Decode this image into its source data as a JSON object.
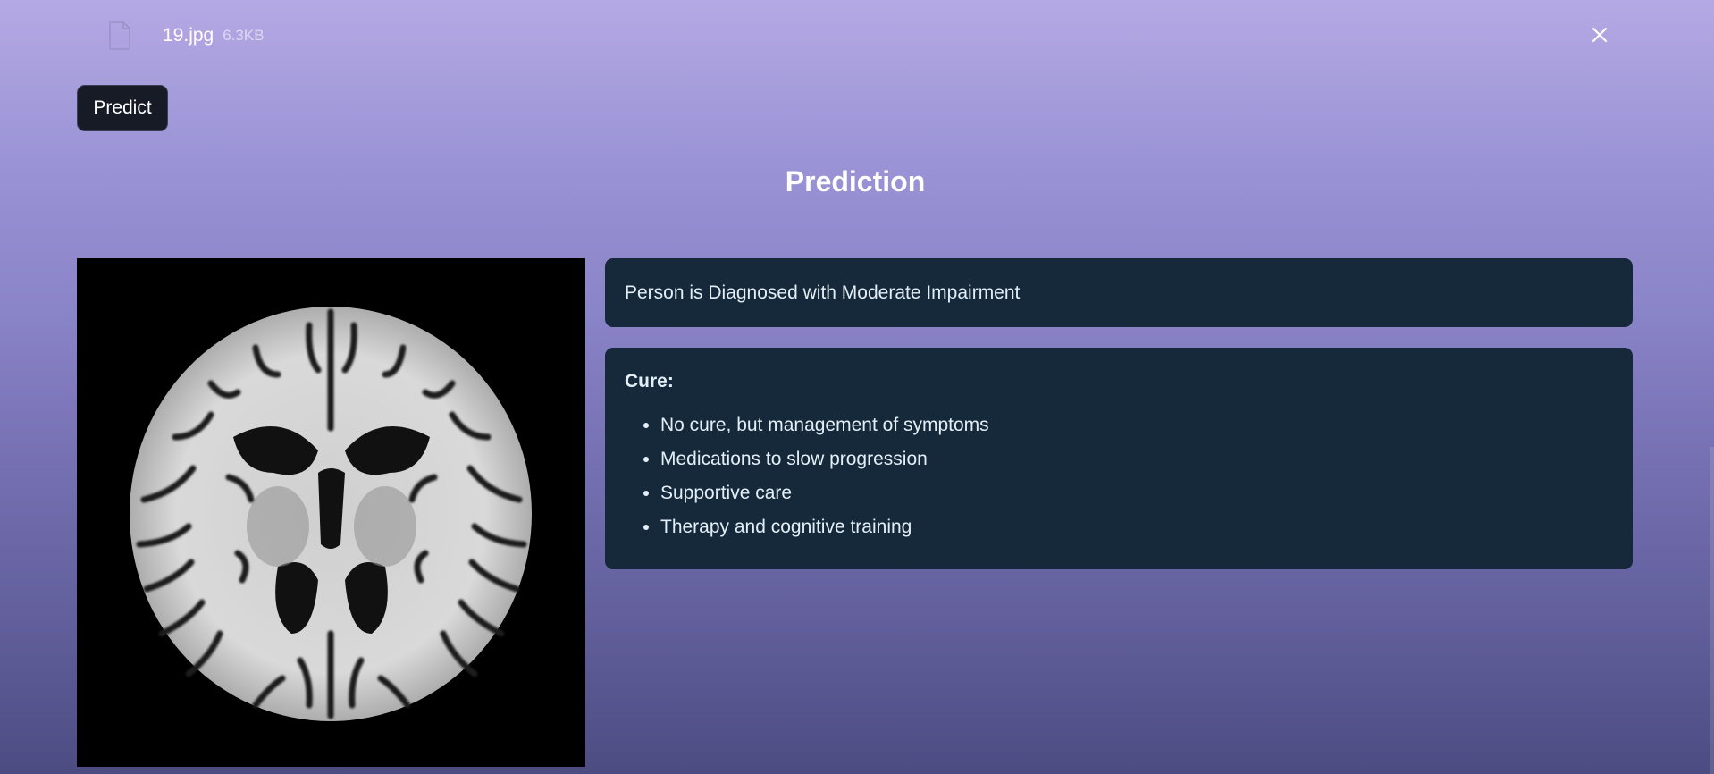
{
  "file": {
    "name": "19.jpg",
    "size": "6.3KB",
    "icon": "file-icon",
    "close_icon": "close-icon"
  },
  "predict_button": {
    "label": "Predict"
  },
  "prediction": {
    "title": "Prediction",
    "result_text": "Person is Diagnosed with Moderate Impairment",
    "cure_heading": "Cure:",
    "cure_items": [
      "No cure, but management of symptoms",
      "Medications to slow progression",
      "Supportive care",
      "Therapy and cognitive training"
    ]
  },
  "colors": {
    "background_top": "#b5a9e4",
    "background_bottom": "#4c4c82",
    "panel": "#15293a",
    "button": "#161b26"
  }
}
